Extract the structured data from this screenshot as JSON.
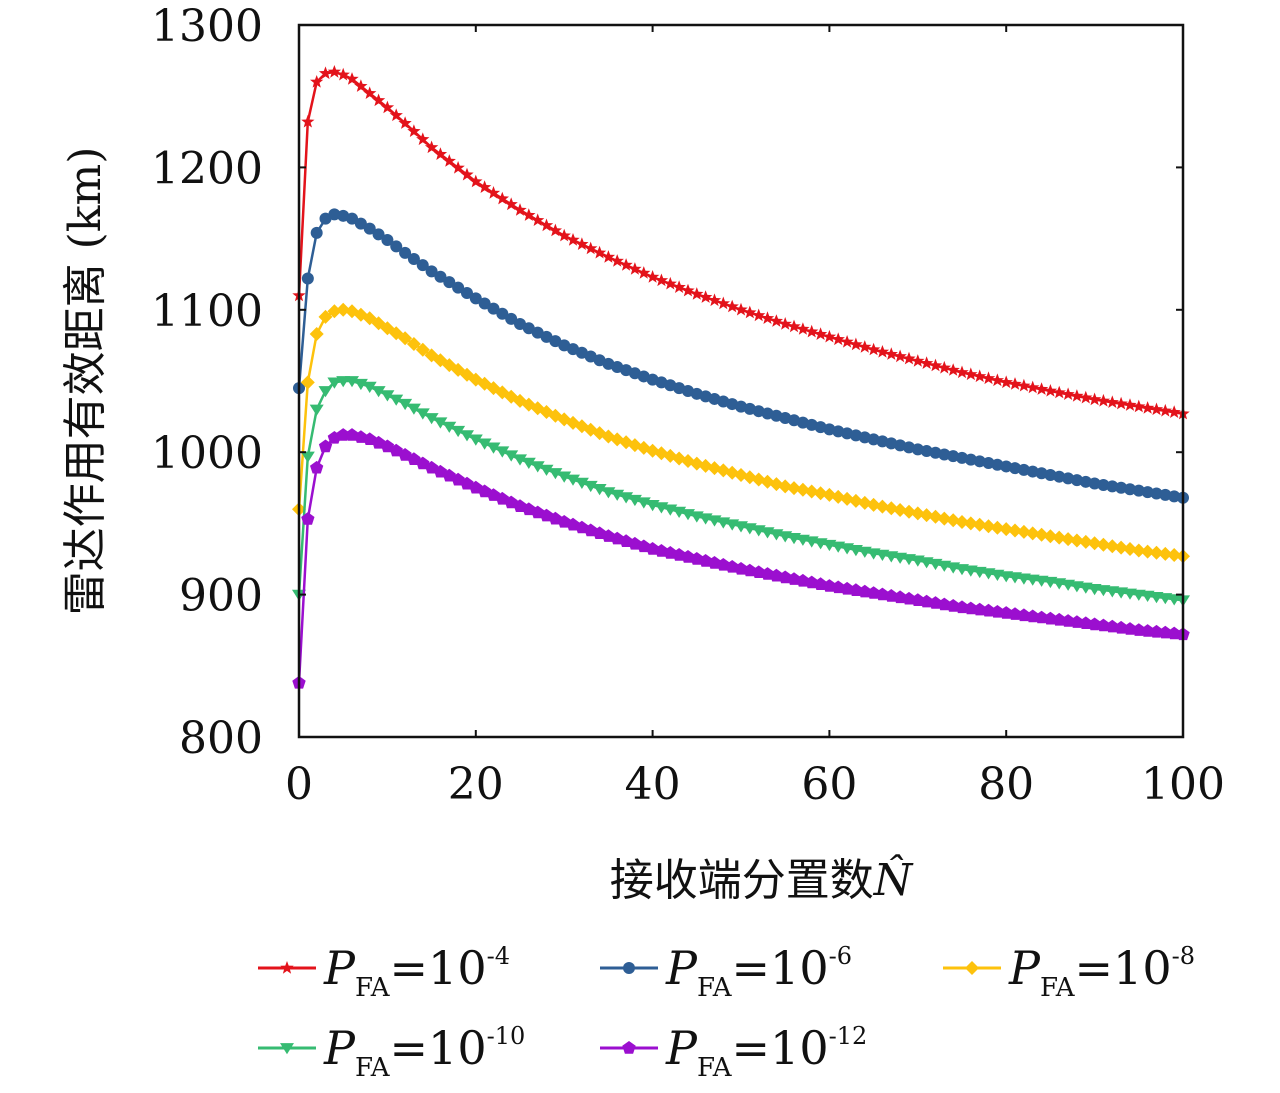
{
  "chart_data": {
    "type": "line",
    "xlabel": "接收端分置数",
    "xlabel_symbol": "N̂",
    "ylabel": "雷达作用有效距离 (km)",
    "xlim": [
      0,
      100
    ],
    "ylim": [
      800,
      1300
    ],
    "xticks": [
      0,
      20,
      40,
      60,
      80,
      100
    ],
    "yticks": [
      800,
      900,
      1000,
      1100,
      1200,
      1300
    ],
    "grid": false,
    "legend_position": "bottom",
    "series": [
      {
        "name": "P_FA=10^-4",
        "label_main": "P",
        "label_sub": "FA",
        "label_eq": "=10",
        "label_exp": "-4",
        "color": "#e3131b",
        "marker": "star",
        "points": [
          [
            0,
            1110
          ],
          [
            1,
            1232
          ],
          [
            2,
            1260
          ],
          [
            3,
            1266
          ],
          [
            4,
            1267
          ],
          [
            5,
            1265
          ],
          [
            6,
            1262
          ],
          [
            8,
            1252
          ],
          [
            10,
            1242
          ],
          [
            12,
            1231
          ],
          [
            15,
            1214
          ],
          [
            20,
            1190
          ],
          [
            25,
            1170
          ],
          [
            30,
            1152
          ],
          [
            35,
            1137
          ],
          [
            40,
            1123
          ],
          [
            45,
            1111
          ],
          [
            50,
            1100
          ],
          [
            55,
            1090
          ],
          [
            60,
            1081
          ],
          [
            65,
            1072
          ],
          [
            70,
            1064
          ],
          [
            75,
            1056
          ],
          [
            80,
            1049
          ],
          [
            85,
            1043
          ],
          [
            90,
            1037
          ],
          [
            95,
            1032
          ],
          [
            100,
            1027
          ]
        ]
      },
      {
        "name": "P_FA=10^-6",
        "label_main": "P",
        "label_sub": "FA",
        "label_eq": "=10",
        "label_exp": "-6",
        "color": "#2e5e95",
        "marker": "circle",
        "points": [
          [
            0,
            1045
          ],
          [
            1,
            1122
          ],
          [
            2,
            1154
          ],
          [
            3,
            1164
          ],
          [
            4,
            1167
          ],
          [
            5,
            1166
          ],
          [
            6,
            1164
          ],
          [
            8,
            1157
          ],
          [
            10,
            1149
          ],
          [
            12,
            1140
          ],
          [
            15,
            1127
          ],
          [
            20,
            1108
          ],
          [
            25,
            1090
          ],
          [
            30,
            1075
          ],
          [
            35,
            1062
          ],
          [
            40,
            1051
          ],
          [
            45,
            1041
          ],
          [
            50,
            1032
          ],
          [
            55,
            1024
          ],
          [
            60,
            1016
          ],
          [
            65,
            1009
          ],
          [
            70,
            1002
          ],
          [
            75,
            996
          ],
          [
            80,
            990
          ],
          [
            85,
            984
          ],
          [
            90,
            978
          ],
          [
            95,
            973
          ],
          [
            100,
            968
          ]
        ]
      },
      {
        "name": "P_FA=10^-8",
        "label_main": "P",
        "label_sub": "FA",
        "label_eq": "=10",
        "label_exp": "-8",
        "color": "#fdc20c",
        "marker": "diamond",
        "points": [
          [
            0,
            960
          ],
          [
            1,
            1049
          ],
          [
            2,
            1083
          ],
          [
            3,
            1095
          ],
          [
            4,
            1099
          ],
          [
            5,
            1100
          ],
          [
            6,
            1099
          ],
          [
            8,
            1094
          ],
          [
            10,
            1087
          ],
          [
            12,
            1080
          ],
          [
            15,
            1068
          ],
          [
            20,
            1051
          ],
          [
            25,
            1036
          ],
          [
            30,
            1023
          ],
          [
            35,
            1011
          ],
          [
            40,
            1001
          ],
          [
            45,
            992
          ],
          [
            50,
            984
          ],
          [
            55,
            976
          ],
          [
            60,
            970
          ],
          [
            65,
            963
          ],
          [
            70,
            957
          ],
          [
            75,
            951
          ],
          [
            80,
            946
          ],
          [
            85,
            941
          ],
          [
            90,
            936
          ],
          [
            95,
            931
          ],
          [
            100,
            927
          ]
        ]
      },
      {
        "name": "P_FA=10^-10",
        "label_main": "P",
        "label_sub": "FA",
        "label_eq": "=10",
        "label_exp": "-10",
        "color": "#36bb72",
        "marker": "triangle-down",
        "points": [
          [
            0,
            900
          ],
          [
            1,
            997
          ],
          [
            2,
            1030
          ],
          [
            3,
            1043
          ],
          [
            4,
            1049
          ],
          [
            5,
            1050
          ],
          [
            6,
            1050
          ],
          [
            8,
            1046
          ],
          [
            10,
            1040
          ],
          [
            12,
            1034
          ],
          [
            15,
            1024
          ],
          [
            20,
            1009
          ],
          [
            25,
            995
          ],
          [
            30,
            983
          ],
          [
            35,
            972
          ],
          [
            40,
            963
          ],
          [
            45,
            955
          ],
          [
            50,
            948
          ],
          [
            55,
            941
          ],
          [
            60,
            935
          ],
          [
            65,
            929
          ],
          [
            70,
            924
          ],
          [
            75,
            918
          ],
          [
            80,
            913
          ],
          [
            85,
            909
          ],
          [
            90,
            904
          ],
          [
            95,
            900
          ],
          [
            100,
            896
          ]
        ]
      },
      {
        "name": "P_FA=10^-12",
        "label_main": "P",
        "label_sub": "FA",
        "label_eq": "=10",
        "label_exp": "-12",
        "color": "#9b0fcf",
        "marker": "pentagon",
        "points": [
          [
            0,
            838
          ],
          [
            1,
            953
          ],
          [
            2,
            989
          ],
          [
            3,
            1004
          ],
          [
            4,
            1010
          ],
          [
            5,
            1012
          ],
          [
            6,
            1012
          ],
          [
            8,
            1009
          ],
          [
            10,
            1004
          ],
          [
            12,
            998
          ],
          [
            15,
            989
          ],
          [
            20,
            975
          ],
          [
            25,
            962
          ],
          [
            30,
            951
          ],
          [
            35,
            941
          ],
          [
            40,
            932
          ],
          [
            45,
            925
          ],
          [
            50,
            918
          ],
          [
            55,
            912
          ],
          [
            60,
            906
          ],
          [
            65,
            901
          ],
          [
            70,
            896
          ],
          [
            75,
            891
          ],
          [
            80,
            887
          ],
          [
            85,
            883
          ],
          [
            90,
            879
          ],
          [
            95,
            875
          ],
          [
            100,
            872
          ]
        ]
      }
    ]
  }
}
